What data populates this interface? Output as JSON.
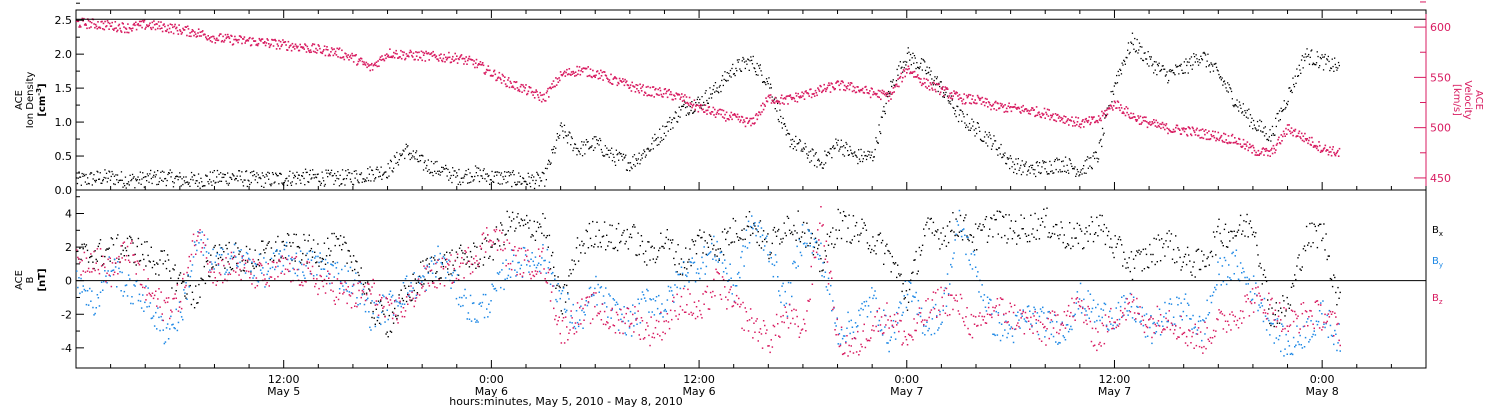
{
  "colors": {
    "black": "#000000",
    "pink": "#d81b60",
    "blue": "#1e88e5"
  },
  "x_axis": {
    "title": "hours:minutes,  May  5, 2010 - May  8, 2010",
    "ticks": [
      {
        "t": 12,
        "top": "12:00",
        "bottom": "May 5"
      },
      {
        "t": 24,
        "top": "0:00",
        "bottom": "May 6"
      },
      {
        "t": 36,
        "top": "12:00",
        "bottom": "May 6"
      },
      {
        "t": 48,
        "top": "0:00",
        "bottom": "May 7"
      },
      {
        "t": 60,
        "top": "12:00",
        "bottom": "May 7"
      },
      {
        "t": 72,
        "top": "0:00",
        "bottom": "May 8"
      }
    ]
  },
  "chart_data": [
    {
      "type": "scatter",
      "panel": "top",
      "xlim_hours": [
        0,
        78
      ],
      "left_axis": {
        "label_line1": "ACE",
        "label_line2": "Ion Density",
        "label_line3": "[cm",
        "label_sup": "-3",
        "label_close": "]",
        "ylim": [
          0,
          2.65
        ],
        "ticks": [
          "0.0",
          "0.5",
          "1.0",
          "1.5",
          "2.0",
          "2.5"
        ]
      },
      "right_axis": {
        "label_line1": "ACE",
        "label_line2": "Velocity",
        "label_line3": "[km/s]",
        "ylim": [
          438,
          617
        ],
        "ticks": [
          "450",
          "500",
          "550",
          "600"
        ]
      },
      "series": [
        {
          "name": "Ion Density",
          "axis": "left",
          "color": "#000000",
          "x": [
            0,
            1,
            2,
            3,
            4,
            5,
            6,
            7,
            8,
            9,
            10,
            11,
            12,
            13,
            14,
            15,
            16,
            17,
            18,
            19,
            20,
            21,
            22,
            23,
            24,
            25,
            26,
            27,
            28,
            29,
            30,
            31,
            32,
            33,
            34,
            35,
            36,
            37,
            38,
            39,
            40,
            41,
            42,
            43,
            44,
            45,
            46,
            47,
            48,
            49,
            50,
            51,
            52,
            53,
            54,
            55,
            56,
            57,
            58,
            59,
            60,
            61,
            62,
            63,
            64,
            65,
            66,
            67,
            68,
            69,
            70,
            71,
            72,
            73
          ],
          "y": [
            0.15,
            0.18,
            0.2,
            0.15,
            0.17,
            0.2,
            0.16,
            0.15,
            0.18,
            0.2,
            0.17,
            0.16,
            0.18,
            0.2,
            0.19,
            0.18,
            0.2,
            0.25,
            0.3,
            0.6,
            0.4,
            0.3,
            0.2,
            0.25,
            0.2,
            0.18,
            0.15,
            0.15,
            0.9,
            0.6,
            0.7,
            0.5,
            0.4,
            0.6,
            0.9,
            1.2,
            1.3,
            1.5,
            1.8,
            1.9,
            1.6,
            0.8,
            0.6,
            0.4,
            0.7,
            0.5,
            0.5,
            1.5,
            2.0,
            1.8,
            1.5,
            1.1,
            0.9,
            0.7,
            0.4,
            0.3,
            0.35,
            0.4,
            0.3,
            0.5,
            1.6,
            2.2,
            1.9,
            1.7,
            1.8,
            2.0,
            1.7,
            1.3,
            1.0,
            0.8,
            1.4,
            2.0,
            1.9,
            1.8
          ]
        },
        {
          "name": "Velocity",
          "axis": "right",
          "color": "#d81b60",
          "x": [
            0,
            1,
            2,
            3,
            4,
            5,
            6,
            7,
            8,
            9,
            10,
            11,
            12,
            13,
            14,
            15,
            16,
            17,
            18,
            19,
            20,
            21,
            22,
            23,
            24,
            25,
            26,
            27,
            28,
            29,
            30,
            31,
            32,
            33,
            34,
            35,
            36,
            37,
            38,
            39,
            40,
            41,
            42,
            43,
            44,
            45,
            46,
            47,
            48,
            49,
            50,
            51,
            52,
            53,
            54,
            55,
            56,
            57,
            58,
            59,
            60,
            61,
            62,
            63,
            64,
            65,
            66,
            67,
            68,
            69,
            70,
            71,
            72,
            73
          ],
          "y": [
            605,
            604,
            602,
            600,
            603,
            601,
            598,
            595,
            590,
            588,
            587,
            585,
            583,
            581,
            578,
            576,
            570,
            560,
            575,
            573,
            572,
            571,
            570,
            565,
            555,
            545,
            538,
            530,
            553,
            558,
            555,
            548,
            542,
            537,
            535,
            530,
            520,
            515,
            510,
            505,
            530,
            528,
            533,
            538,
            543,
            540,
            535,
            532,
            560,
            545,
            538,
            530,
            528,
            522,
            520,
            518,
            515,
            510,
            505,
            508,
            525,
            512,
            505,
            500,
            498,
            495,
            492,
            488,
            478,
            475,
            500,
            490,
            480,
            475
          ]
        }
      ]
    },
    {
      "type": "scatter",
      "panel": "bottom",
      "xlim_hours": [
        0,
        78
      ],
      "left_axis": {
        "label_line1": "ACE",
        "label_line2": "B",
        "label_line3": "[nT]",
        "ylim": [
          -5.2,
          5.4
        ],
        "ticks": [
          "-4",
          "-2",
          "0",
          "2",
          "4"
        ]
      },
      "series": [
        {
          "name": "B",
          "sub": "x",
          "color": "#000000",
          "x": [
            0,
            1,
            2,
            3,
            4,
            5,
            6,
            7,
            8,
            9,
            10,
            11,
            12,
            13,
            14,
            15,
            16,
            17,
            18,
            19,
            20,
            21,
            22,
            23,
            24,
            25,
            26,
            27,
            28,
            29,
            30,
            31,
            32,
            33,
            34,
            35,
            36,
            37,
            38,
            39,
            40,
            41,
            42,
            43,
            44,
            45,
            46,
            47,
            48,
            49,
            50,
            51,
            52,
            53,
            54,
            55,
            56,
            57,
            58,
            59,
            60,
            61,
            62,
            63,
            64,
            65,
            66,
            67,
            68,
            69,
            70,
            71,
            72,
            73
          ],
          "y": [
            1.5,
            1.6,
            1.8,
            2.0,
            1.6,
            1.0,
            0.0,
            -1.0,
            1.8,
            1.5,
            1.2,
            1.7,
            2.0,
            1.9,
            1.8,
            2.0,
            1.5,
            -1.5,
            -2.5,
            -1.0,
            0.5,
            1.0,
            1.2,
            1.5,
            2.0,
            3.5,
            3.2,
            3.4,
            -1.5,
            2.0,
            3.0,
            2.5,
            2.8,
            1.5,
            2.5,
            1.0,
            2.5,
            2.0,
            3.0,
            3.5,
            2.0,
            3.5,
            3.2,
            1.0,
            3.5,
            3.0,
            2.5,
            1.5,
            -1.0,
            3.0,
            2.8,
            3.5,
            2.5,
            3.6,
            3.0,
            3.2,
            3.5,
            2.8,
            2.5,
            3.5,
            2.0,
            1.0,
            1.5,
            2.5,
            1.2,
            1.0,
            2.8,
            3.0,
            3.5,
            -2.0,
            -1.5,
            2.5,
            3.0,
            -1.5
          ]
        },
        {
          "name": "B",
          "sub": "y",
          "color": "#1e88e5",
          "x": [
            0,
            1,
            2,
            3,
            4,
            5,
            6,
            7,
            8,
            9,
            10,
            11,
            12,
            13,
            14,
            15,
            16,
            17,
            18,
            19,
            20,
            21,
            22,
            23,
            24,
            25,
            26,
            27,
            28,
            29,
            30,
            31,
            32,
            33,
            34,
            35,
            36,
            37,
            38,
            39,
            40,
            41,
            42,
            43,
            44,
            45,
            46,
            47,
            48,
            49,
            50,
            51,
            52,
            53,
            54,
            55,
            56,
            57,
            58,
            59,
            60,
            61,
            62,
            63,
            64,
            65,
            66,
            67,
            68,
            69,
            70,
            71,
            72,
            73
          ],
          "y": [
            0.5,
            -1.5,
            1.0,
            -0.5,
            -1.0,
            -3.0,
            -2.0,
            2.5,
            1.0,
            1.5,
            1.0,
            0.5,
            1.5,
            1.0,
            1.0,
            0.5,
            0.0,
            -2.0,
            -1.5,
            -0.5,
            0.0,
            1.5,
            -0.5,
            -2.0,
            -1.0,
            1.0,
            1.2,
            1.5,
            -1.0,
            -2.5,
            -0.5,
            -1.8,
            -2.5,
            -1.0,
            -1.5,
            0.5,
            1.0,
            2.0,
            -0.5,
            3.5,
            2.0,
            -1.5,
            3.0,
            1.5,
            -3.0,
            -2.5,
            -1.0,
            -3.5,
            -0.5,
            -2.5,
            -2.0,
            3.5,
            0.5,
            -2.5,
            -3.0,
            -2.0,
            -2.5,
            -3.0,
            -1.0,
            -2.0,
            -2.0,
            -1.5,
            -3.0,
            -2.0,
            -1.5,
            -3.0,
            0.5,
            1.0,
            -0.5,
            -2.5,
            -4.0,
            -3.0,
            -2.0,
            -3.5
          ]
        },
        {
          "name": "B",
          "sub": "z",
          "color": "#d81b60",
          "x": [
            0,
            1,
            2,
            3,
            4,
            5,
            6,
            7,
            8,
            9,
            10,
            11,
            12,
            13,
            14,
            15,
            16,
            17,
            18,
            19,
            20,
            21,
            22,
            23,
            24,
            25,
            26,
            27,
            28,
            29,
            30,
            31,
            32,
            33,
            34,
            35,
            36,
            37,
            38,
            39,
            40,
            41,
            42,
            43,
            44,
            45,
            46,
            47,
            48,
            49,
            50,
            51,
            52,
            53,
            54,
            55,
            56,
            57,
            58,
            59,
            60,
            61,
            62,
            63,
            64,
            65,
            66,
            67,
            68,
            69,
            70,
            71,
            72,
            73
          ],
          "y": [
            1.0,
            1.5,
            0.5,
            2.0,
            -0.5,
            -1.5,
            -1.0,
            3.0,
            0.5,
            1.0,
            0.5,
            0.2,
            0.8,
            0.5,
            0.0,
            -0.5,
            -1.0,
            -0.5,
            -2.0,
            -1.5,
            0.0,
            0.5,
            0.8,
            1.5,
            3.0,
            1.5,
            1.0,
            1.2,
            -3.0,
            -2.0,
            -1.5,
            -2.5,
            -2.0,
            -3.0,
            -2.5,
            -1.0,
            -2.0,
            0.0,
            -1.5,
            -2.5,
            -3.5,
            -2.0,
            -3.0,
            4.0,
            -3.5,
            -4.0,
            -2.5,
            -2.0,
            -3.5,
            -2.0,
            -1.0,
            -1.5,
            -3.0,
            -1.5,
            -2.0,
            -2.5,
            -3.0,
            -2.0,
            -1.5,
            -3.5,
            -2.0,
            -1.5,
            -2.5,
            -2.0,
            -3.0,
            -3.5,
            -2.5,
            -2.0,
            -1.0,
            -1.5,
            -2.5,
            -2.0,
            -2.0,
            -3.0
          ]
        }
      ]
    }
  ]
}
